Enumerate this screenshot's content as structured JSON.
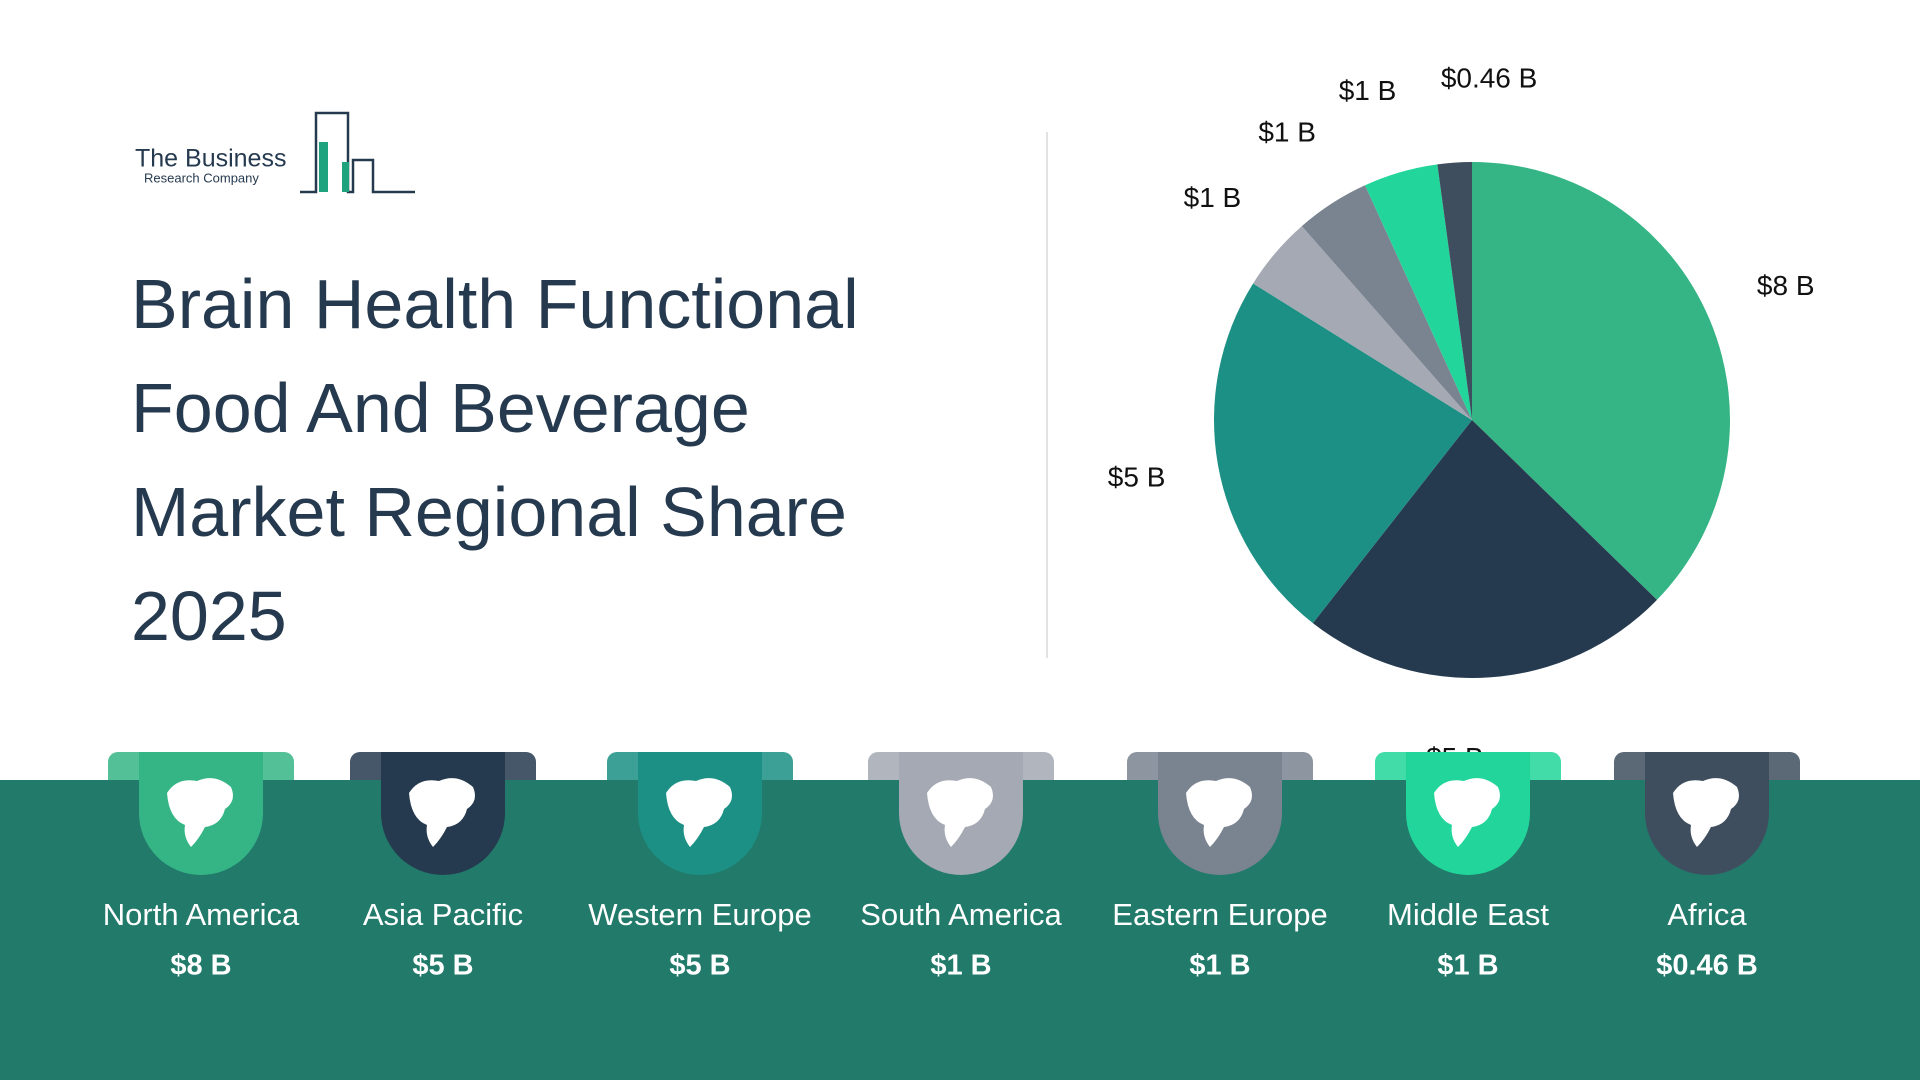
{
  "logo": {
    "name": "The Business",
    "subname": "Research Company"
  },
  "chart_data": {
    "type": "pie",
    "title": "Brain Health Functional Food And Beverage Market Regional Share 2025",
    "categories": [
      "North America",
      "Asia Pacific",
      "Western Europe",
      "South America",
      "Eastern Europe",
      "Middle East",
      "Africa"
    ],
    "values": [
      8,
      5,
      5,
      1,
      1,
      1,
      0.46
    ],
    "value_labels": [
      "$8 B",
      "$5 B",
      "$5 B",
      "$1 B",
      "$1 B",
      "$1 B",
      "$0.46 B"
    ],
    "colors": [
      "#35b585",
      "#253a4f",
      "#1c9085",
      "#a4a9b3",
      "#7a8390",
      "#22d69b",
      "#3f4e5f"
    ]
  }
}
